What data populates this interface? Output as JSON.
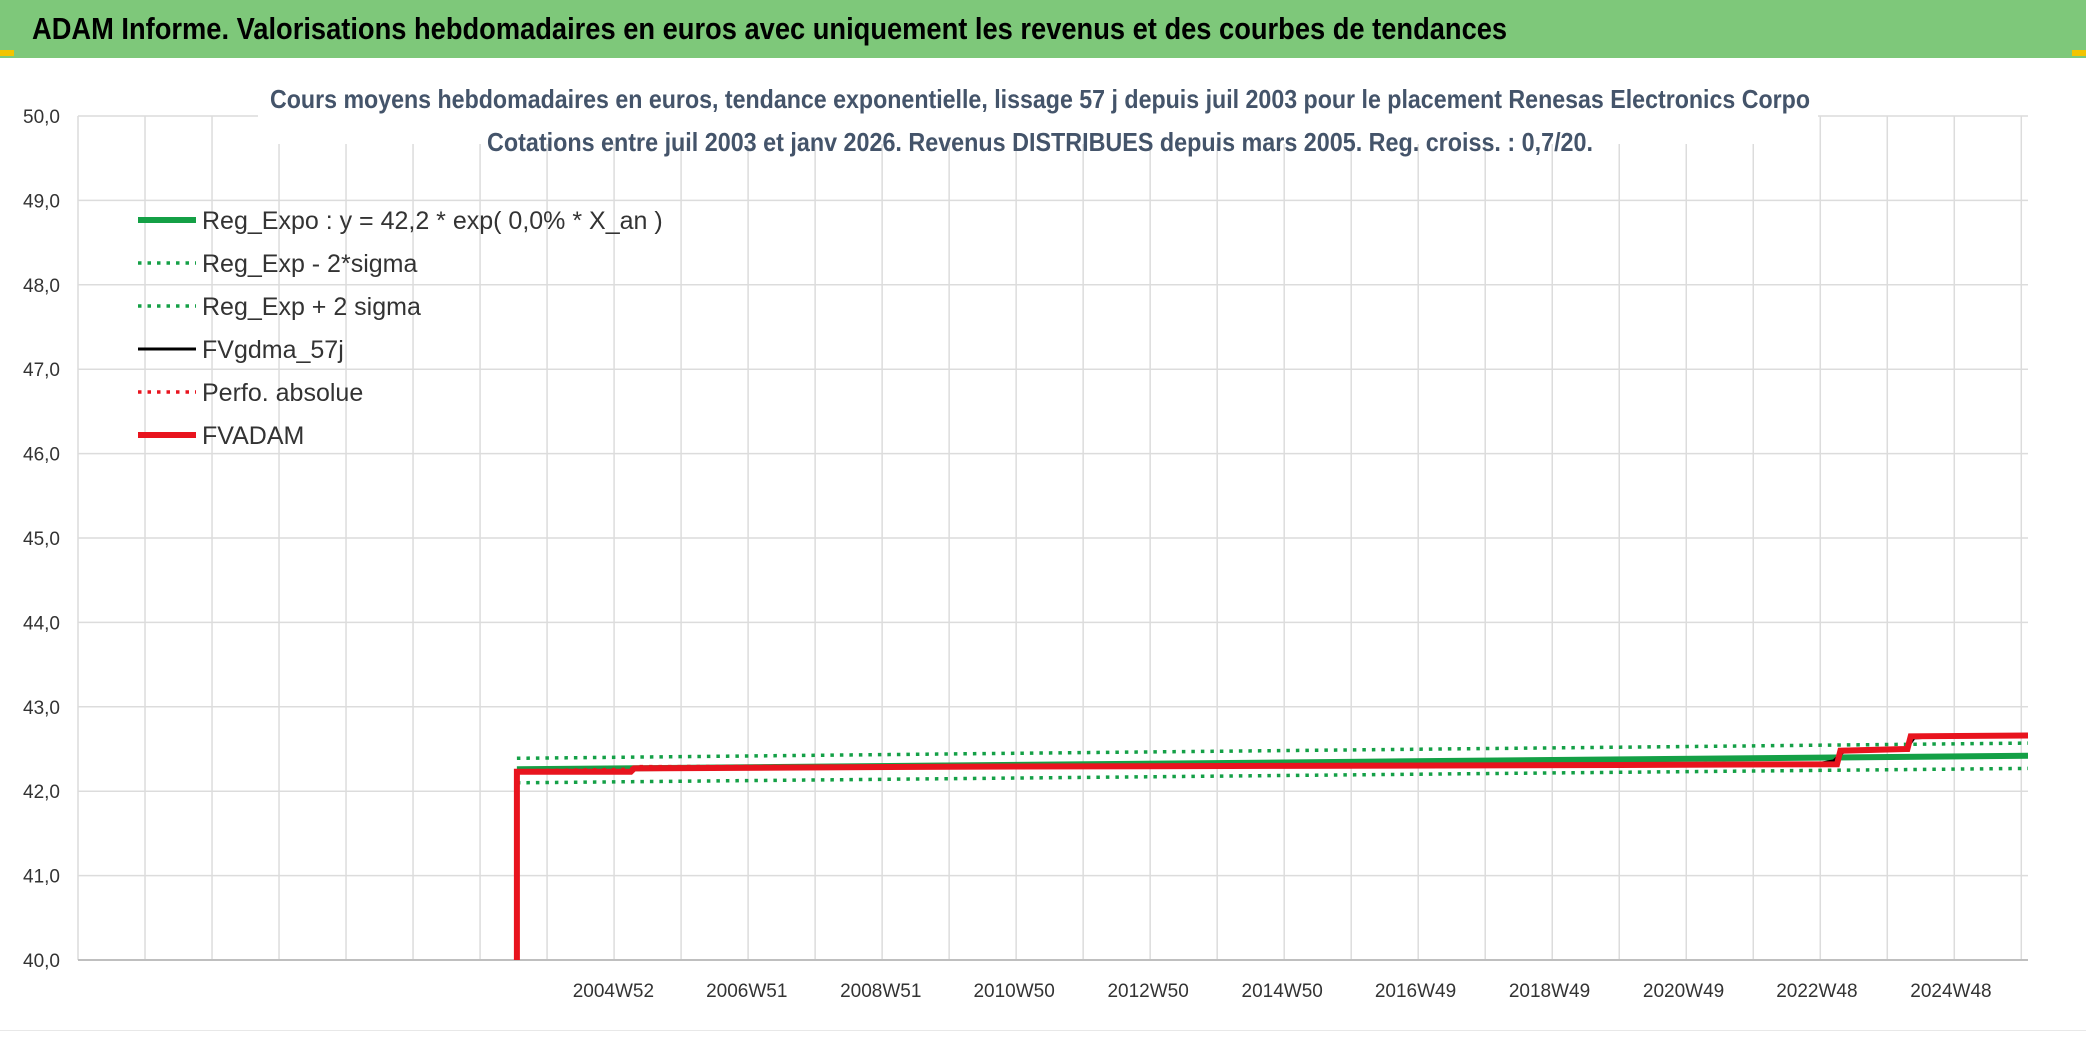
{
  "header": {
    "title": "ADAM Informe. Valorisations hebdomadaires en euros avec uniquement les revenus et des courbes de tendances"
  },
  "colors": {
    "header_bg": "#7ec87a",
    "corner_accent": "#f2c400",
    "green": "#14a046",
    "black": "#000000",
    "red": "#e8141e",
    "grid": "#dcdcdc",
    "title_text": "#44546a"
  },
  "chart_data": {
    "type": "line",
    "title_lines": [
      "Cours moyens hebdomadaires en euros, tendance exponentielle, lissage 57 j depuis juil 2003 pour le placement Renesas Electronics Corpo",
      "Cotations entre juil 2003 et janv 2026. Revenus DISTRIBUES depuis mars 2005. Reg. croiss. : 0,7/20."
    ],
    "xlabel": "",
    "ylabel": "",
    "ylim": [
      40.0,
      50.0
    ],
    "y_ticks": [
      "40,0",
      "41,0",
      "42,0",
      "43,0",
      "44,0",
      "45,0",
      "46,0",
      "47,0",
      "48,0",
      "49,0",
      "50,0"
    ],
    "x_axis_start": 1997.0,
    "x_axis_end": 2026.1,
    "x_tick_labels": [
      {
        "label": "2004W52",
        "x": 2004.99
      },
      {
        "label": "2006W51",
        "x": 2006.98
      },
      {
        "label": "2008W51",
        "x": 2008.98
      },
      {
        "label": "2010W50",
        "x": 2010.97
      },
      {
        "label": "2012W50",
        "x": 2012.97
      },
      {
        "label": "2014W50",
        "x": 2014.97
      },
      {
        "label": "2016W49",
        "x": 2016.96
      },
      {
        "label": "2018W49",
        "x": 2018.96
      },
      {
        "label": "2020W49",
        "x": 2020.96
      },
      {
        "label": "2022W48",
        "x": 2022.95
      },
      {
        "label": "2024W48",
        "x": 2024.95
      }
    ],
    "gridlines": true,
    "legend_position": "top-left",
    "series": [
      {
        "name": "Reg_Expo : y = 42,2 * exp( 0,0% *  X_an )",
        "style": "solid-thick",
        "color": "#14a046",
        "points": [
          [
            2003.55,
            42.26
          ],
          [
            2026.1,
            42.42
          ]
        ]
      },
      {
        "name": "Reg_Exp - 2*sigma",
        "style": "dotted",
        "color": "#14a046",
        "points": [
          [
            2003.55,
            42.1
          ],
          [
            2026.1,
            42.27
          ]
        ]
      },
      {
        "name": "Reg_Exp + 2 sigma",
        "style": "dotted",
        "color": "#14a046",
        "points": [
          [
            2003.55,
            42.39
          ],
          [
            2026.1,
            42.57
          ]
        ]
      },
      {
        "name": "FVgdma_57j",
        "style": "solid",
        "color": "#000000",
        "points": [
          [
            2003.55,
            42.23
          ],
          [
            2005.25,
            42.24
          ],
          [
            2005.3,
            42.27
          ],
          [
            2010.0,
            42.29
          ],
          [
            2015.0,
            42.3
          ],
          [
            2020.0,
            42.31
          ],
          [
            2023.0,
            42.33
          ],
          [
            2023.2,
            42.36
          ],
          [
            2023.35,
            42.47
          ],
          [
            2024.0,
            42.48
          ],
          [
            2024.3,
            42.52
          ],
          [
            2024.4,
            42.63
          ],
          [
            2025.0,
            42.66
          ],
          [
            2026.1,
            42.66
          ]
        ]
      },
      {
        "name": "Perfo. absolue",
        "style": "dotted",
        "color": "#e8141e",
        "points": [
          [
            2003.55,
            42.24
          ],
          [
            2005.25,
            42.26
          ],
          [
            2005.3,
            42.29
          ],
          [
            2023.2,
            42.33
          ],
          [
            2023.3,
            42.49
          ],
          [
            2024.3,
            42.51
          ],
          [
            2024.35,
            42.65
          ],
          [
            2026.1,
            42.66
          ]
        ]
      },
      {
        "name": "FVADAM",
        "style": "solid-thick",
        "color": "#e8141e",
        "points": [
          [
            2003.55,
            40.0
          ],
          [
            2003.55,
            42.23
          ],
          [
            2005.25,
            42.23
          ],
          [
            2005.3,
            42.27
          ],
          [
            2010.0,
            42.29
          ],
          [
            2015.0,
            42.3
          ],
          [
            2020.0,
            42.31
          ],
          [
            2023.25,
            42.32
          ],
          [
            2023.3,
            42.48
          ],
          [
            2024.3,
            42.5
          ],
          [
            2024.35,
            42.65
          ],
          [
            2026.1,
            42.66
          ]
        ]
      }
    ]
  }
}
